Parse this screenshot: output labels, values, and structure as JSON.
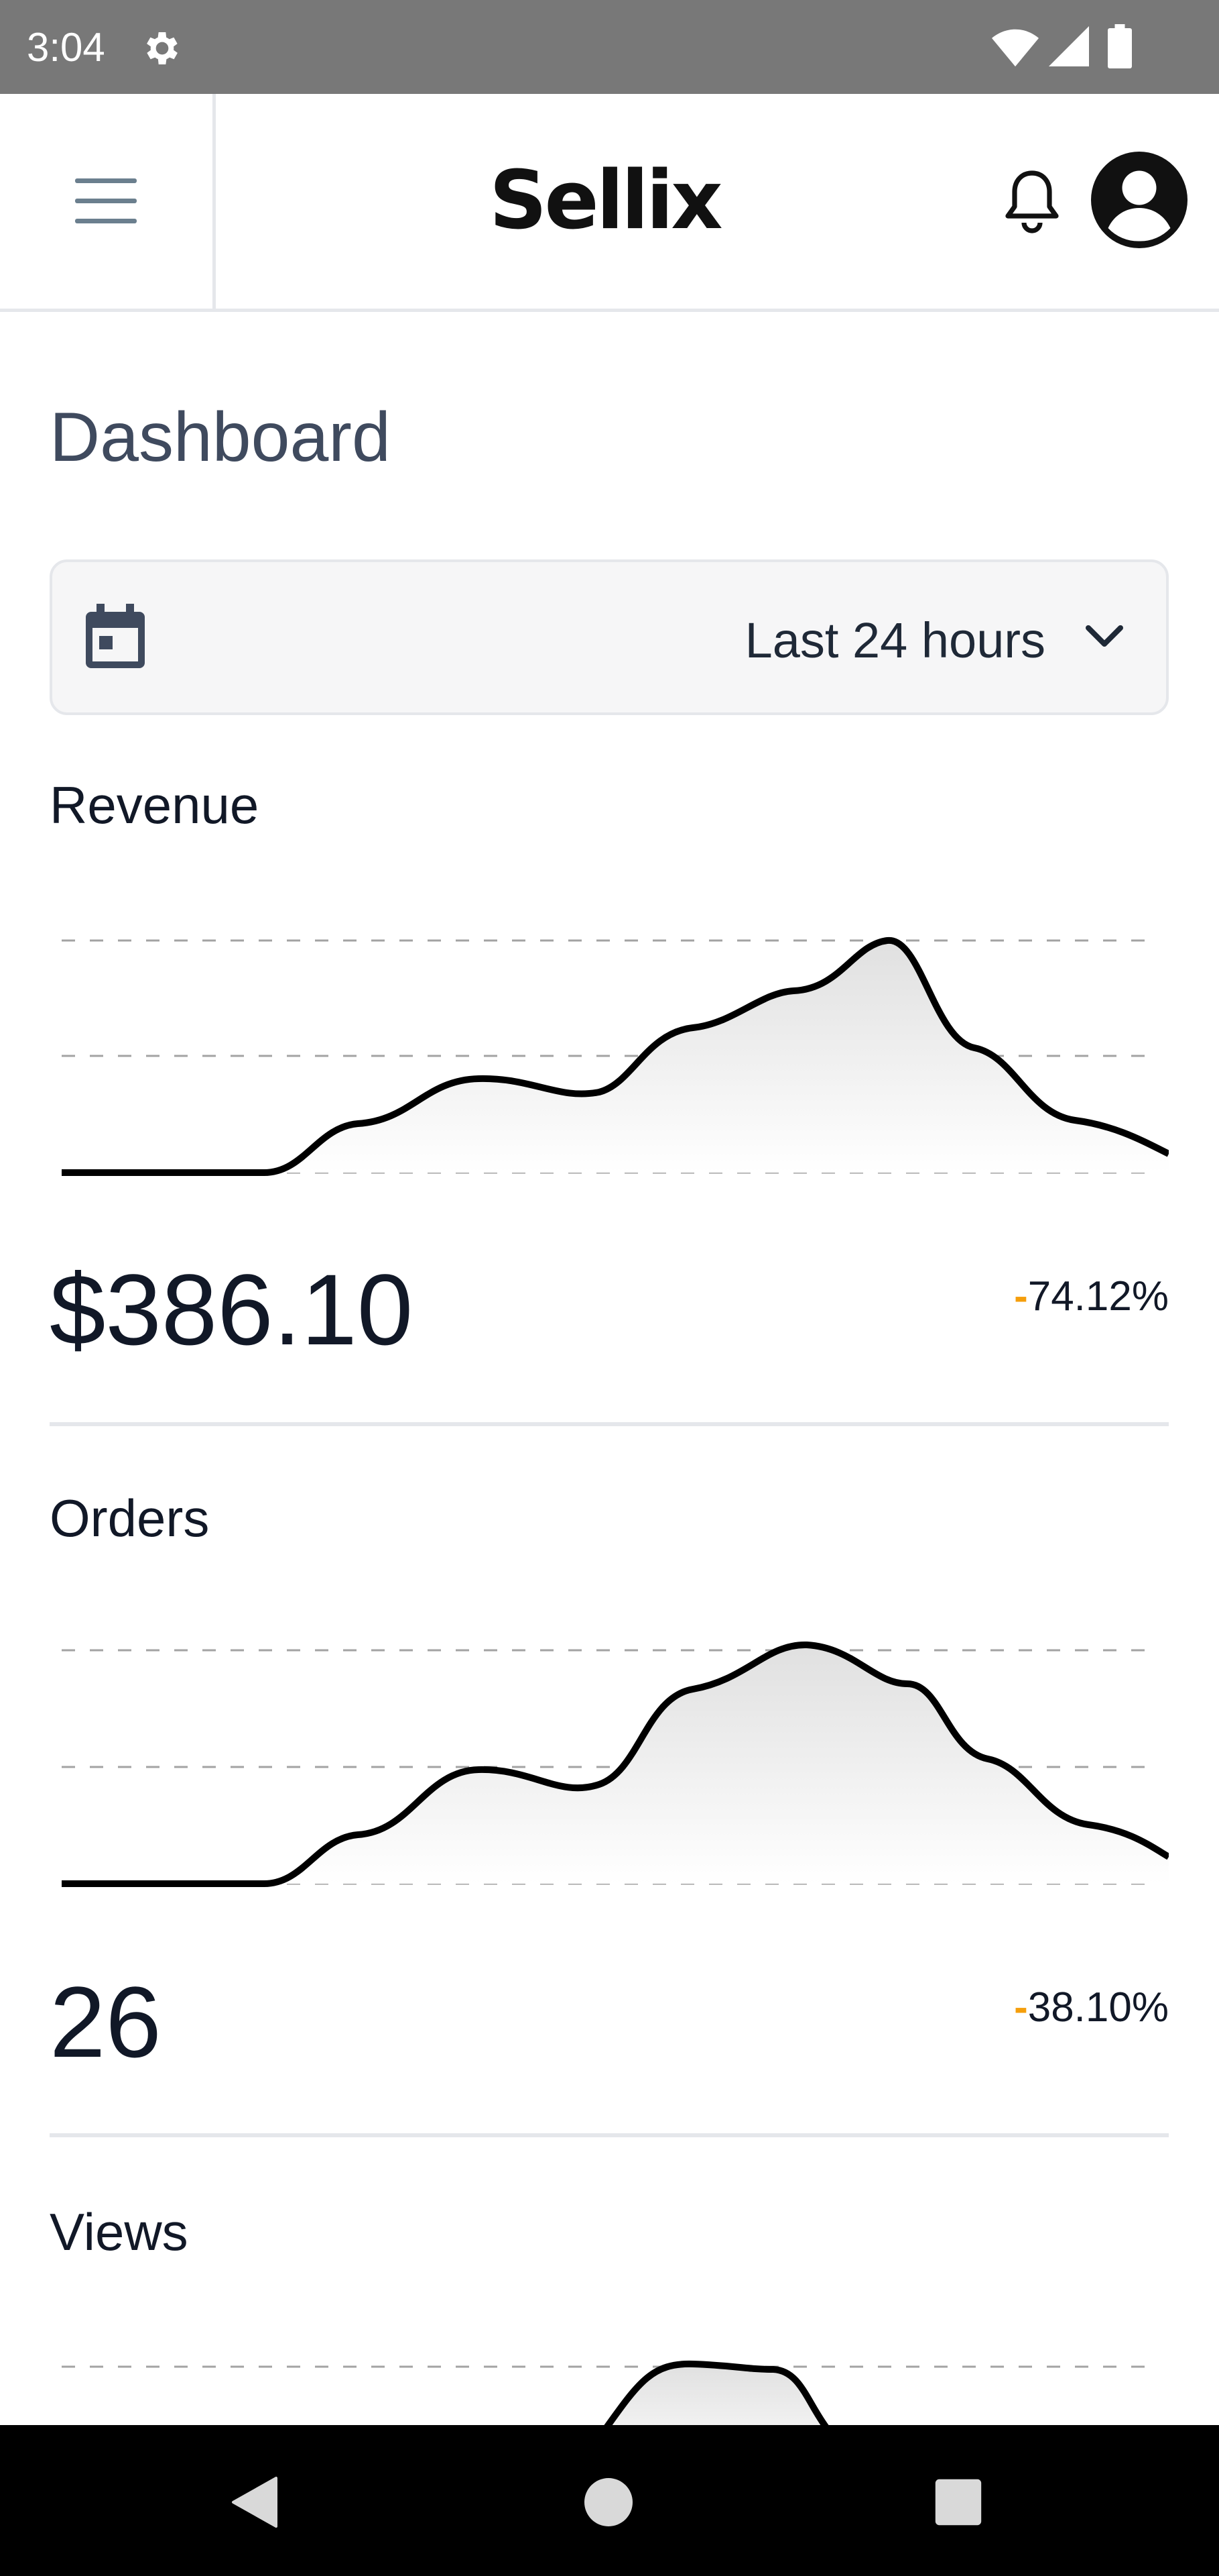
{
  "status_bar": {
    "time": "3:04",
    "icons": [
      "gear-icon",
      "wifi-icon",
      "signal-icon",
      "battery-icon"
    ]
  },
  "header": {
    "logo": "Sellix",
    "icons": [
      "menu-icon",
      "bell-icon",
      "avatar-icon"
    ]
  },
  "page": {
    "title": "Dashboard"
  },
  "date_selector": {
    "label": "Last 24 hours",
    "icons": [
      "calendar-icon",
      "chevron-down-icon"
    ]
  },
  "metrics": {
    "revenue": {
      "label": "Revenue",
      "value": "$386.10",
      "change_sign": "-",
      "change": "74.12%"
    },
    "orders": {
      "label": "Orders",
      "value": "26",
      "change_sign": "-",
      "change": "38.10%"
    },
    "views": {
      "label": "Views"
    }
  },
  "colors": {
    "status_bar": "#787878",
    "title": "#3f4a5e",
    "text": "#111827",
    "negative_dash": "#f59e0b",
    "divider": "#e5e7eb"
  },
  "nav_bar": {
    "icons": [
      "back-icon",
      "home-icon",
      "recents-icon"
    ]
  }
}
